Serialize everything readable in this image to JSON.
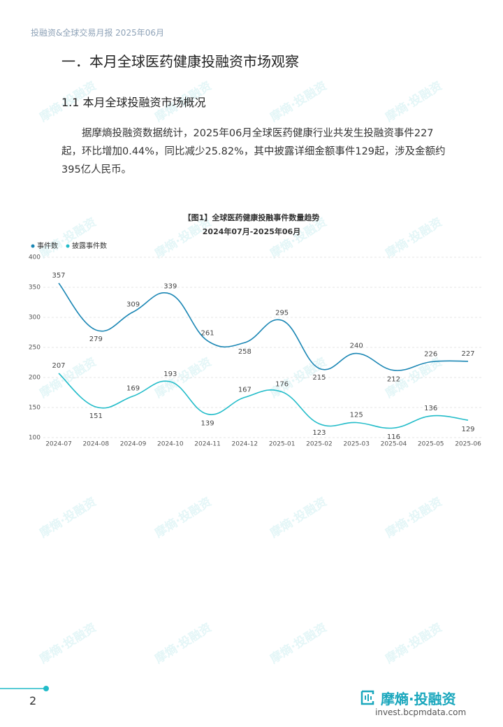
{
  "header": "投融资&全球交易月报 2025年06月",
  "section_title": "一．本月全球医药健康投融资市场观察",
  "subsection_title": "1.1 本月全球投融资市场概况",
  "paragraph": "据摩熵投融资数据统计，2025年06月全球医药健康行业共发生投融资事件227起，环比增加0.44%，同比减少25.82%，其中披露详细金额事件129起，涉及金额约395亿人民币。",
  "watermark": "摩熵·投融资",
  "chart_data": {
    "type": "line",
    "title": "【图1】全球医药健康投融事件数量趋势",
    "subtitle": "2024年07月-2025年06月",
    "categories": [
      "2024-07",
      "2024-08",
      "2024-09",
      "2024-10",
      "2024-11",
      "2024-12",
      "2025-01",
      "2025-02",
      "2025-03",
      "2025-04",
      "2025-05",
      "2025-06"
    ],
    "series": [
      {
        "name": "事件数",
        "color": "#1a86b4",
        "values": [
          357,
          279,
          309,
          339,
          261,
          258,
          295,
          215,
          240,
          212,
          226,
          227
        ]
      },
      {
        "name": "披露事件数",
        "color": "#22bcc9",
        "values": [
          207,
          151,
          169,
          193,
          139,
          167,
          176,
          123,
          125,
          116,
          136,
          129
        ]
      }
    ],
    "ylim": [
      100,
      400
    ],
    "yticks": [
      100,
      150,
      200,
      250,
      300,
      350,
      400
    ],
    "grid": true,
    "legend": "top-left"
  },
  "footer": {
    "page_number": "2",
    "brand": "摩熵·投融资",
    "url": "invest.bcpmdata.com"
  }
}
